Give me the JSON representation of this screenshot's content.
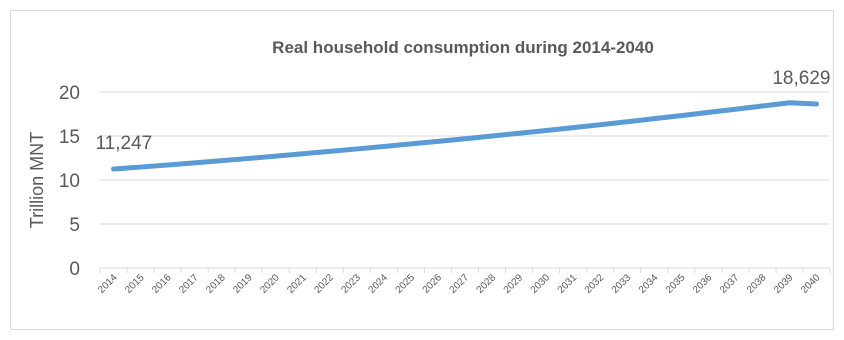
{
  "chart_data": {
    "type": "line",
    "title": "Real household consumption during 2014-2040",
    "ylabel": "Trillion MNT",
    "xlabel": "",
    "ylim": [
      0,
      20
    ],
    "yticks": [
      "0",
      "5",
      "10",
      "15",
      "20"
    ],
    "grid": true,
    "legend": "none",
    "categories": [
      "2014",
      "2015",
      "2016",
      "2017",
      "2018",
      "2019",
      "2020",
      "2021",
      "2022",
      "2023",
      "2024",
      "2025",
      "2026",
      "2027",
      "2028",
      "2029",
      "2030",
      "2031",
      "2032",
      "2033",
      "2034",
      "2035",
      "2036",
      "2037",
      "2038",
      "2039",
      "2040"
    ],
    "series": [
      {
        "color": "#5b9bd5",
        "values": [
          11.25,
          11.47,
          11.71,
          11.95,
          12.2,
          12.45,
          12.71,
          12.98,
          13.25,
          13.53,
          13.81,
          14.1,
          14.39,
          14.69,
          15.0,
          15.31,
          15.63,
          15.95,
          16.28,
          16.62,
          16.97,
          17.32,
          17.68,
          18.04,
          18.41,
          18.78,
          18.63
        ]
      }
    ],
    "data_labels": [
      {
        "category": "2014",
        "text": "11,247"
      },
      {
        "category": "2040",
        "text": "18,629"
      }
    ]
  }
}
